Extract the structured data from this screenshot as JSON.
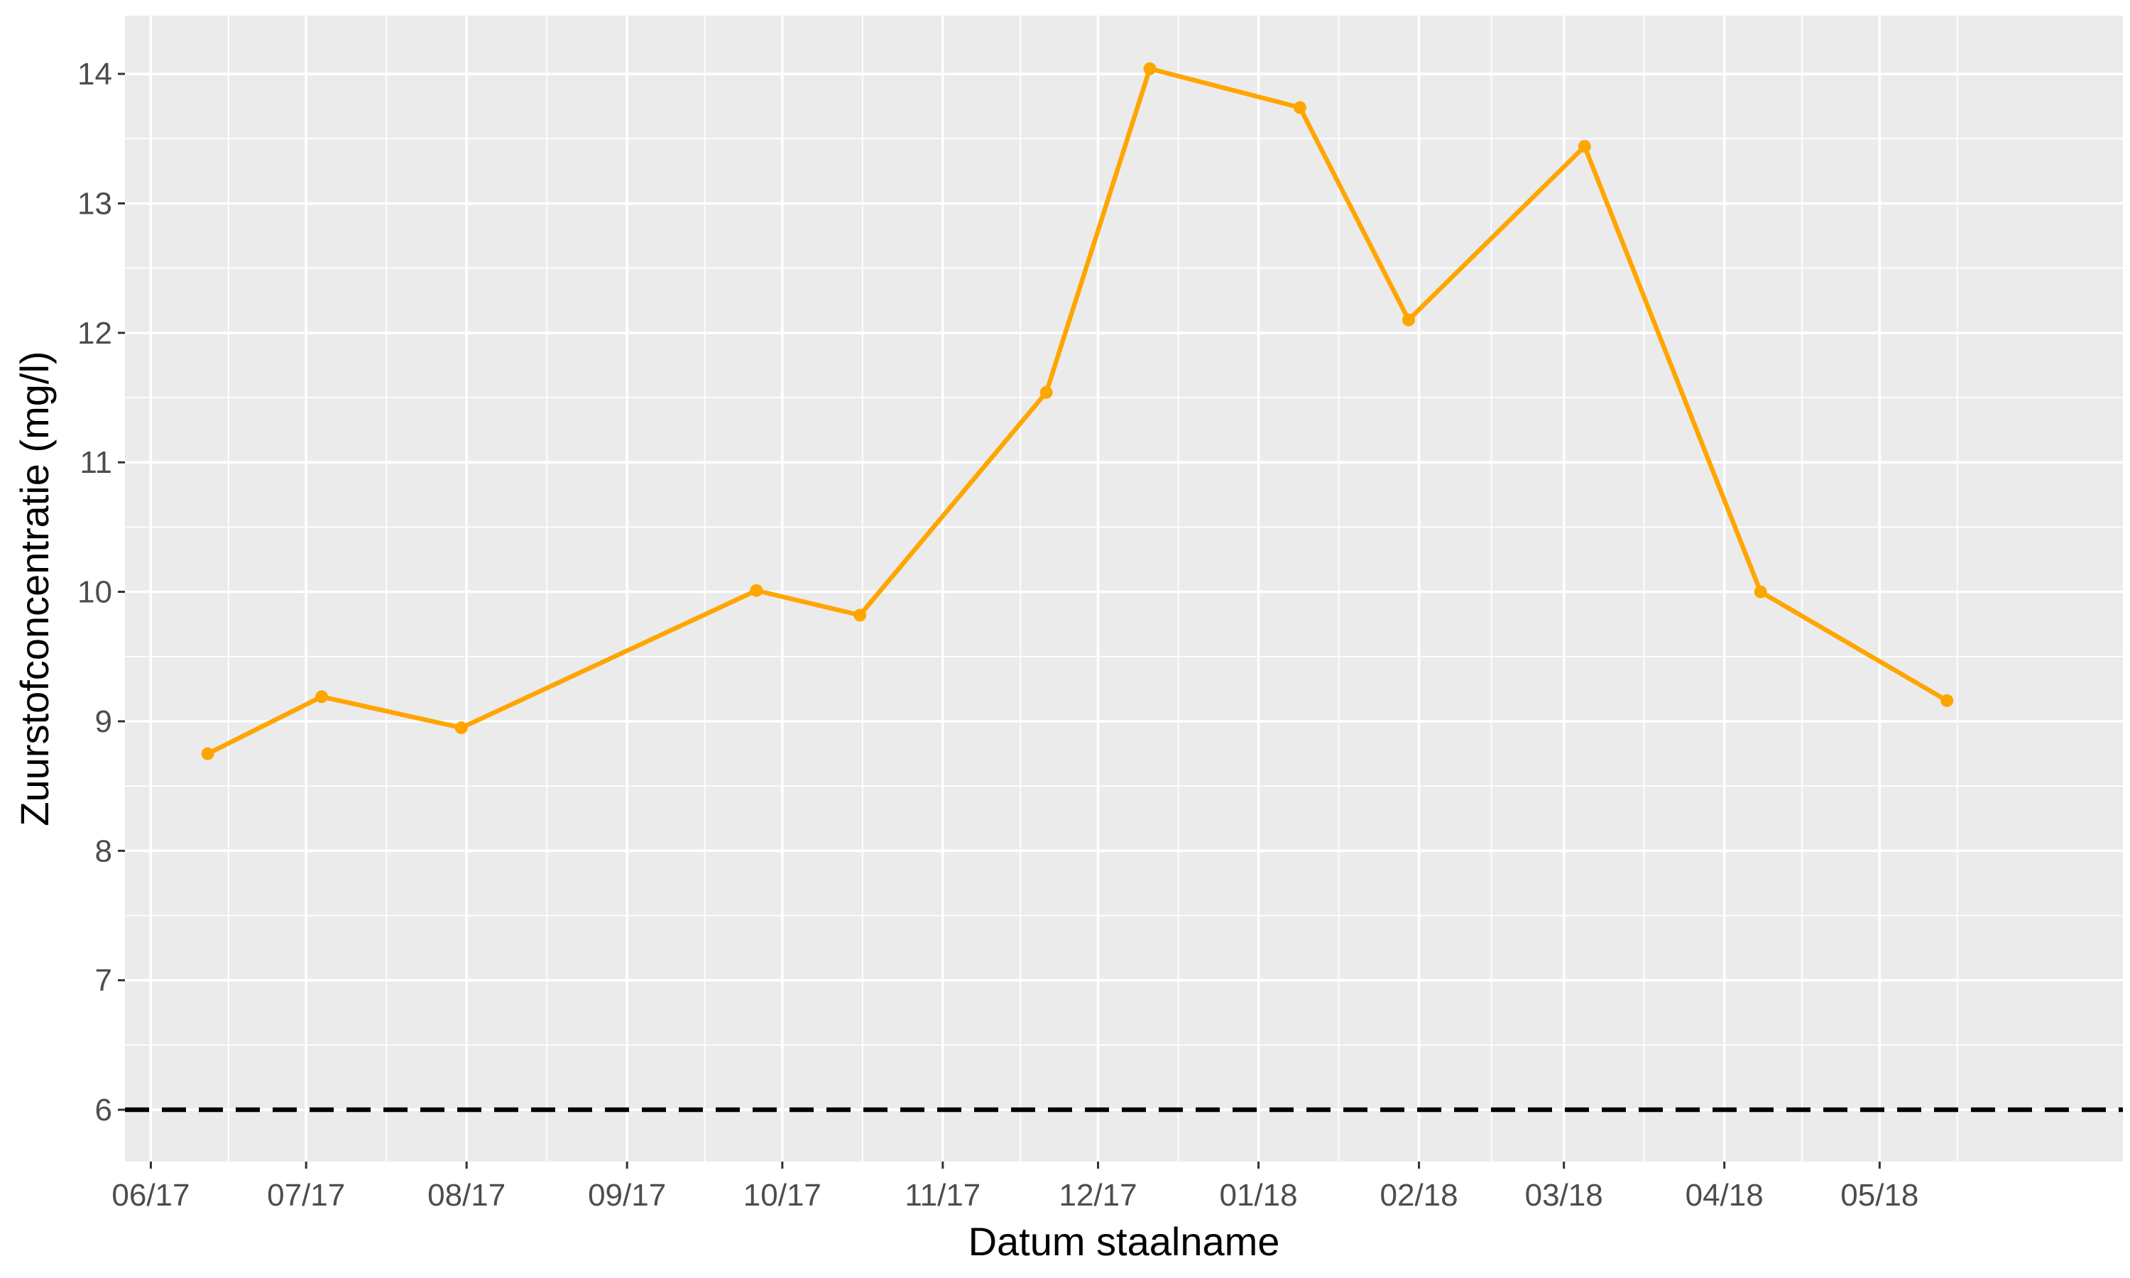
{
  "chart_data": {
    "type": "line",
    "title": "",
    "xlabel": "Datum staalname",
    "ylabel": "Zuurstofconcentratie (mg/l)",
    "x_ticks": [
      {
        "date": "2017-06-01",
        "label": "06/17"
      },
      {
        "date": "2017-07-01",
        "label": "07/17"
      },
      {
        "date": "2017-08-01",
        "label": "08/17"
      },
      {
        "date": "2017-09-01",
        "label": "09/17"
      },
      {
        "date": "2017-10-01",
        "label": "10/17"
      },
      {
        "date": "2017-11-01",
        "label": "11/17"
      },
      {
        "date": "2017-12-01",
        "label": "12/17"
      },
      {
        "date": "2018-01-01",
        "label": "01/18"
      },
      {
        "date": "2018-02-01",
        "label": "02/18"
      },
      {
        "date": "2018-03-01",
        "label": "03/18"
      },
      {
        "date": "2018-04-01",
        "label": "04/18"
      },
      {
        "date": "2018-05-01",
        "label": "05/18"
      }
    ],
    "y_ticks": [
      6,
      7,
      8,
      9,
      10,
      11,
      12,
      13,
      14
    ],
    "xlim": [
      "2017-05-27",
      "2018-06-17"
    ],
    "ylim": [
      5.6,
      14.45
    ],
    "grid": true,
    "series": [
      {
        "color": "#FFA500",
        "points": [
          {
            "x": "2017-06-12",
            "y": 8.75
          },
          {
            "x": "2017-07-04",
            "y": 9.19
          },
          {
            "x": "2017-07-31",
            "y": 8.95
          },
          {
            "x": "2017-09-26",
            "y": 10.01
          },
          {
            "x": "2017-10-16",
            "y": 9.82
          },
          {
            "x": "2017-11-21",
            "y": 11.54
          },
          {
            "x": "2017-12-11",
            "y": 14.04
          },
          {
            "x": "2018-01-09",
            "y": 13.74
          },
          {
            "x": "2018-01-30",
            "y": 12.1
          },
          {
            "x": "2018-03-05",
            "y": 13.44
          },
          {
            "x": "2018-04-08",
            "y": 10.0
          },
          {
            "x": "2018-05-14",
            "y": 9.16
          }
        ]
      }
    ],
    "reference_line": {
      "y": 6,
      "style": "dashed",
      "color": "#000000"
    }
  }
}
